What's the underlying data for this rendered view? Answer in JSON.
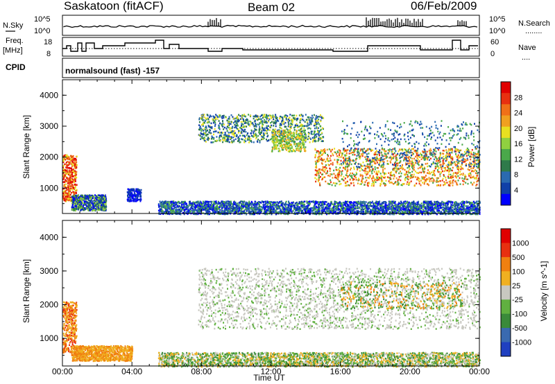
{
  "header": {
    "station": "Saskatoon (fitACF)",
    "beam": "Beam 02",
    "date": "06/Feb/2009"
  },
  "noise_panel": {
    "left_label": "N.Sky",
    "right_label": "N.Search",
    "right_legend_dash": "........",
    "left_ticks": [
      "10^5",
      "10^0"
    ],
    "right_ticks": [
      "10^5",
      "10^0"
    ]
  },
  "freq_panel": {
    "left_label_1": "Freq.",
    "left_label_2": "[MHz]",
    "right_label": "Nave",
    "right_legend_dash": "....",
    "left_ticks": [
      "18",
      "8"
    ],
    "right_ticks": [
      "60",
      "0"
    ]
  },
  "cpid": {
    "label": "CPID",
    "text": "normalsound (fast) -157"
  },
  "chart_data": [
    {
      "type": "heatmap",
      "title": "",
      "ylabel": "Slant Range [km]",
      "ylim": [
        180,
        4500
      ],
      "yticks": [
        "1000",
        "2000",
        "3000",
        "4000"
      ],
      "quantity": "Power",
      "colorbar": {
        "label": "Power [dB]",
        "ticks": [
          "28",
          "24",
          "20",
          "16",
          "12",
          "8",
          "4"
        ],
        "colors": [
          "#0000ff",
          "#1040a8",
          "#2a6ab0",
          "#2f7a4a",
          "#4aa84a",
          "#90d040",
          "#e8e020",
          "#f0a020",
          "#f07018",
          "#e83010",
          "#e00000"
        ]
      }
    },
    {
      "type": "heatmap",
      "title": "",
      "ylabel": "Slant Range [km]",
      "ylim": [
        180,
        4500
      ],
      "yticks": [
        "1000",
        "2000",
        "3000",
        "4000"
      ],
      "quantity": "Velocity",
      "colorbar": {
        "label": "Velocity [m s^-1]",
        "ticks": [
          "1000",
          "500",
          "100",
          "25",
          "-25",
          "-100",
          "-500",
          "-1000"
        ],
        "colors": [
          "#2040c0",
          "#3a6ab0",
          "#3a8a3a",
          "#60b040",
          "#c8c8c0",
          "#f0b020",
          "#f08010",
          "#e83010",
          "#e00000"
        ]
      }
    }
  ],
  "x_axis": {
    "label": "Time UT",
    "ticks": [
      "00:00",
      "04:00",
      "08:00",
      "12:00",
      "16:00",
      "20:00",
      "00:00"
    ]
  }
}
